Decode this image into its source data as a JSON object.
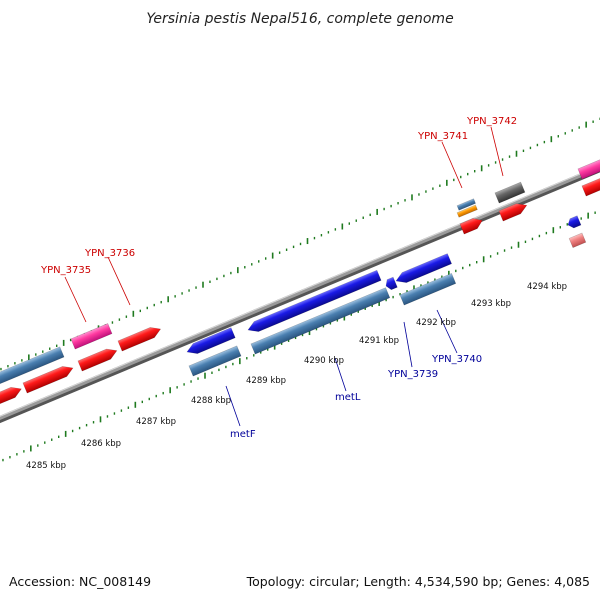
{
  "title": "Yersinia pestis Nepal516, complete genome",
  "accession": "Accession: NC_008149",
  "topology": "Topology: circular; Length: 4,534,590 bp; Genes: 4,085",
  "colors": {
    "background": "#ffffff",
    "backbone": "#8a8a8a",
    "tick": "#1f7a1f",
    "red_feature": "#ff1a1a",
    "blue_feature": "#1a1ae6",
    "steelblue_feature": "#4a7fb0",
    "pink_feature": "#ff3aa0",
    "gray_feature": "#666666",
    "orange_feature": "#ff9900",
    "salmon_feature": "#f08080",
    "red_label": "#cc0000",
    "blue_label": "#000099"
  },
  "scale_labels": [
    "4285 kbp",
    "4286 kbp",
    "4287 kbp",
    "4288 kbp",
    "4289 kbp",
    "4290 kbp",
    "4291 kbp",
    "4292 kbp",
    "4293 kbp",
    "4294 kbp"
  ],
  "gene_labels": [
    "YPN_3735",
    "YPN_3736",
    "YPN_3741",
    "YPN_3742",
    "metF",
    "metL",
    "YPN_3739",
    "YPN_3740"
  ]
}
